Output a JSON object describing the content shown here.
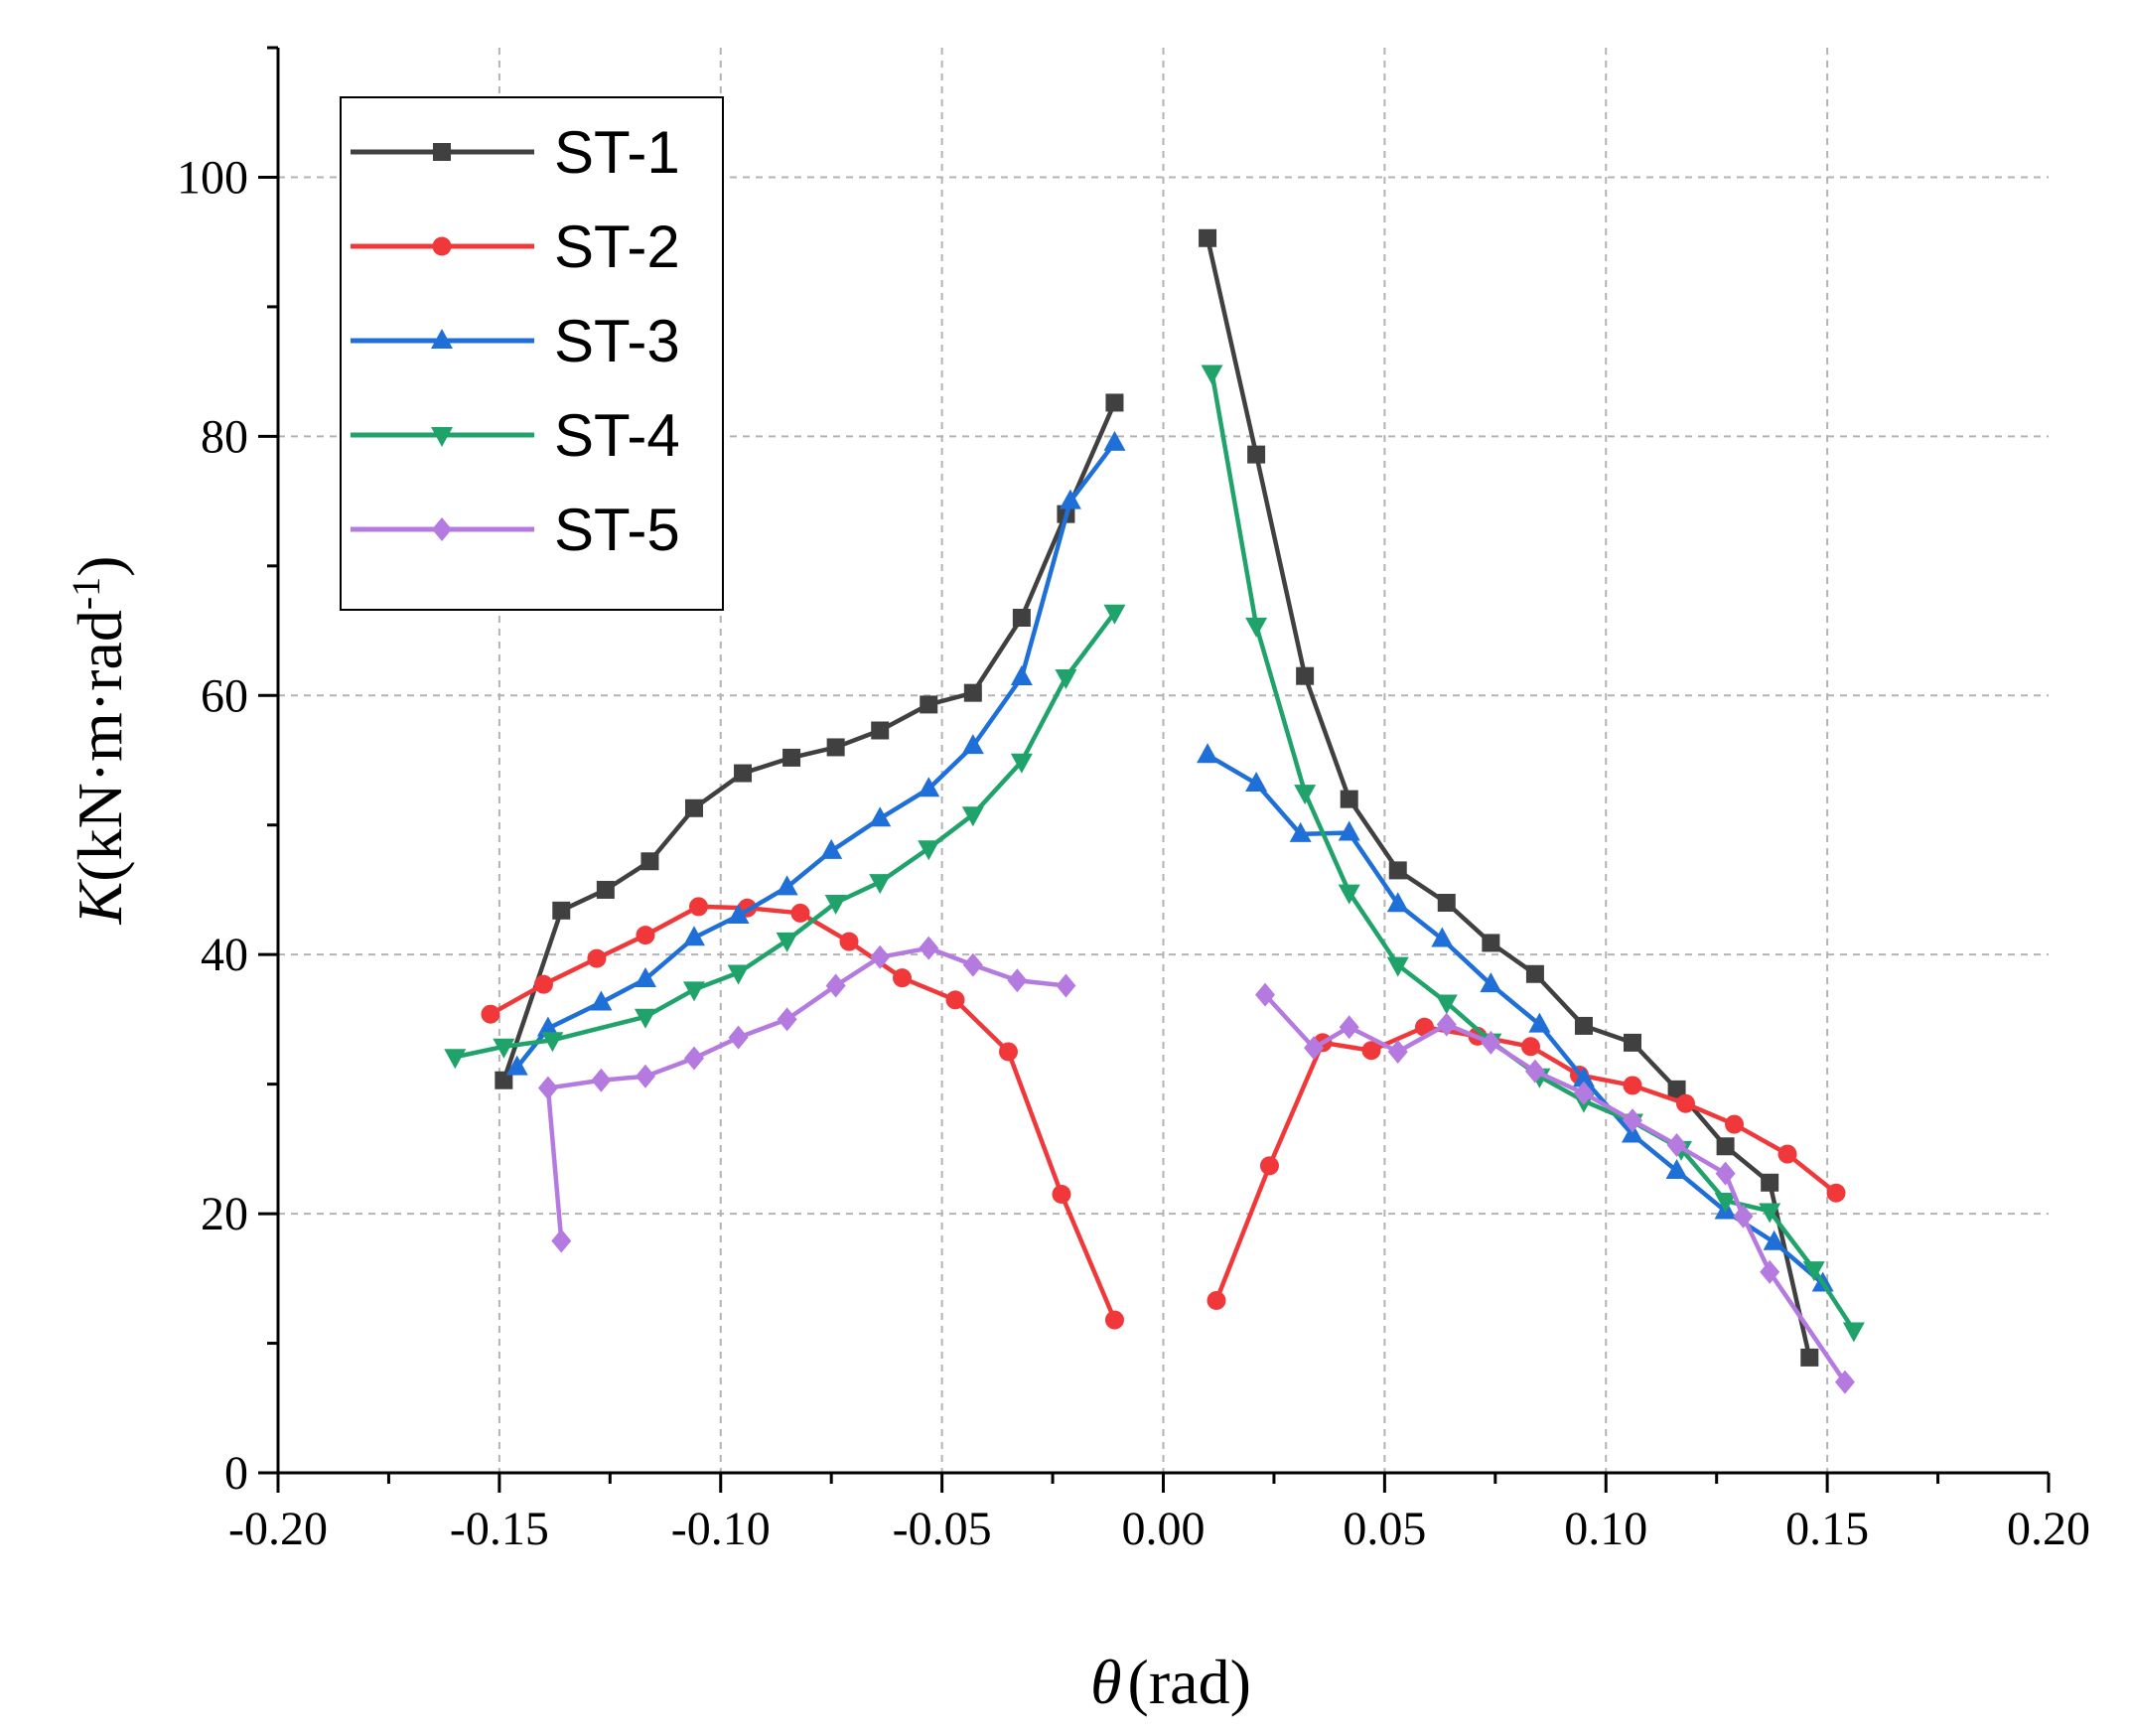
{
  "chart_data": {
    "type": "line",
    "title": "",
    "xlabel_symbol": "θ",
    "xlabel_unit": "(rad)",
    "ylabel_symbol": "K",
    "ylabel_unit": "(kN·m·rad",
    "ylabel_sup": "-1",
    "ylabel_close": ")",
    "xlim": [
      -0.2,
      0.2
    ],
    "ylim": [
      0,
      110
    ],
    "xticks": [
      -0.2,
      -0.15,
      -0.1,
      -0.05,
      0.0,
      0.05,
      0.1,
      0.15,
      0.2
    ],
    "xtick_labels": [
      "-0.20",
      "-0.15",
      "-0.10",
      "-0.05",
      "0.00",
      "0.05",
      "0.10",
      "0.15",
      "0.20"
    ],
    "yticks": [
      0,
      20,
      40,
      60,
      80,
      100
    ],
    "ytick_labels": [
      "0",
      "20",
      "40",
      "60",
      "80",
      "100"
    ],
    "grid": true,
    "legend_position": "top-left",
    "series": [
      {
        "name": "ST-1",
        "color": "#404040",
        "marker": "square",
        "segments": [
          [
            [
              -0.149,
              30.3
            ],
            [
              -0.136,
              43.4
            ],
            [
              -0.126,
              45.0
            ],
            [
              -0.116,
              47.2
            ],
            [
              -0.106,
              51.3
            ],
            [
              -0.095,
              54.0
            ],
            [
              -0.084,
              55.2
            ],
            [
              -0.074,
              56.0
            ],
            [
              -0.064,
              57.3
            ],
            [
              -0.053,
              59.3
            ],
            [
              -0.043,
              60.2
            ],
            [
              -0.032,
              66.0
            ],
            [
              -0.022,
              74.0
            ],
            [
              -0.011,
              82.6
            ]
          ],
          [
            [
              0.01,
              95.3
            ],
            [
              0.021,
              78.6
            ],
            [
              0.032,
              61.5
            ],
            [
              0.042,
              52.0
            ],
            [
              0.053,
              46.5
            ],
            [
              0.064,
              44.0
            ],
            [
              0.074,
              40.9
            ],
            [
              0.084,
              38.5
            ],
            [
              0.095,
              34.5
            ],
            [
              0.106,
              33.2
            ],
            [
              0.116,
              29.6
            ],
            [
              0.127,
              25.2
            ],
            [
              0.137,
              22.4
            ],
            [
              0.146,
              8.9
            ]
          ]
        ]
      },
      {
        "name": "ST-2",
        "color": "#f0383a",
        "marker": "circle",
        "segments": [
          [
            [
              -0.152,
              35.4
            ],
            [
              -0.14,
              37.7
            ],
            [
              -0.128,
              39.7
            ],
            [
              -0.117,
              41.5
            ],
            [
              -0.105,
              43.7
            ],
            [
              -0.094,
              43.6
            ],
            [
              -0.082,
              43.2
            ],
            [
              -0.071,
              41.0
            ],
            [
              -0.059,
              38.2
            ],
            [
              -0.047,
              36.5
            ],
            [
              -0.035,
              32.5
            ],
            [
              -0.023,
              21.5
            ],
            [
              -0.011,
              11.8
            ]
          ],
          [
            [
              0.012,
              13.3
            ],
            [
              0.024,
              23.7
            ],
            [
              0.036,
              33.2
            ],
            [
              0.047,
              32.6
            ],
            [
              0.059,
              34.4
            ],
            [
              0.071,
              33.7
            ],
            [
              0.083,
              32.9
            ],
            [
              0.094,
              30.7
            ],
            [
              0.106,
              29.9
            ],
            [
              0.118,
              28.5
            ],
            [
              0.129,
              26.9
            ],
            [
              0.141,
              24.6
            ],
            [
              0.152,
              21.6
            ]
          ]
        ]
      },
      {
        "name": "ST-3",
        "color": "#1f6fd9",
        "marker": "triangle-up",
        "segments": [
          [
            [
              -0.146,
              31.3
            ],
            [
              -0.139,
              34.3
            ],
            [
              -0.127,
              36.3
            ],
            [
              -0.117,
              38.1
            ],
            [
              -0.106,
              41.3
            ],
            [
              -0.096,
              43.0
            ],
            [
              -0.085,
              45.2
            ],
            [
              -0.075,
              48.0
            ],
            [
              -0.064,
              50.5
            ],
            [
              -0.053,
              52.8
            ],
            [
              -0.043,
              56.1
            ],
            [
              -0.032,
              61.4
            ],
            [
              -0.021,
              75.0
            ],
            [
              -0.011,
              79.5
            ]
          ],
          [
            [
              0.01,
              55.4
            ],
            [
              0.021,
              53.2
            ],
            [
              0.031,
              49.3
            ],
            [
              0.042,
              49.4
            ],
            [
              0.053,
              43.9
            ],
            [
              0.063,
              41.2
            ],
            [
              0.074,
              37.7
            ],
            [
              0.085,
              34.6
            ],
            [
              0.095,
              30.4
            ],
            [
              0.106,
              26.1
            ],
            [
              0.116,
              23.3
            ],
            [
              0.127,
              20.2
            ],
            [
              0.138,
              17.8
            ],
            [
              0.149,
              14.6
            ]
          ]
        ]
      },
      {
        "name": "ST-4",
        "color": "#1fa36b",
        "marker": "triangle-down",
        "segments": [
          [
            [
              -0.16,
              32.1
            ],
            [
              -0.149,
              32.9
            ],
            [
              -0.138,
              33.4
            ],
            [
              -0.117,
              35.2
            ],
            [
              -0.106,
              37.3
            ],
            [
              -0.096,
              38.6
            ],
            [
              -0.085,
              41.1
            ],
            [
              -0.074,
              44.0
            ],
            [
              -0.064,
              45.6
            ],
            [
              -0.053,
              48.2
            ],
            [
              -0.043,
              50.8
            ],
            [
              -0.032,
              54.9
            ],
            [
              -0.022,
              61.4
            ],
            [
              -0.011,
              66.4
            ]
          ],
          [
            [
              0.011,
              84.9
            ],
            [
              0.021,
              65.4
            ],
            [
              0.032,
              52.5
            ],
            [
              0.042,
              44.8
            ],
            [
              0.053,
              39.2
            ],
            [
              0.064,
              36.3
            ],
            [
              0.074,
              33.3
            ],
            [
              0.085,
              30.6
            ],
            [
              0.095,
              28.7
            ],
            [
              0.106,
              27.1
            ],
            [
              0.117,
              25.0
            ],
            [
              0.127,
              21.0
            ],
            [
              0.137,
              20.2
            ],
            [
              0.147,
              15.7
            ],
            [
              0.156,
              11.0
            ]
          ]
        ]
      },
      {
        "name": "ST-5",
        "color": "#b57ae0",
        "marker": "diamond",
        "segments": [
          [
            [
              -0.136,
              17.9
            ],
            [
              -0.139,
              29.7
            ],
            [
              -0.127,
              30.3
            ],
            [
              -0.117,
              30.6
            ],
            [
              -0.106,
              32.0
            ],
            [
              -0.096,
              33.6
            ],
            [
              -0.085,
              35.0
            ],
            [
              -0.074,
              37.6
            ],
            [
              -0.064,
              39.8
            ],
            [
              -0.053,
              40.5
            ],
            [
              -0.043,
              39.2
            ],
            [
              -0.033,
              38.0
            ],
            [
              -0.022,
              37.6
            ]
          ],
          [
            [
              0.023,
              36.9
            ],
            [
              0.034,
              32.8
            ],
            [
              0.042,
              34.4
            ],
            [
              0.053,
              32.5
            ],
            [
              0.064,
              34.6
            ],
            [
              0.074,
              33.2
            ],
            [
              0.084,
              31.0
            ],
            [
              0.095,
              29.3
            ],
            [
              0.106,
              27.2
            ],
            [
              0.116,
              25.3
            ],
            [
              0.127,
              23.1
            ],
            [
              0.131,
              19.8
            ],
            [
              0.137,
              15.5
            ],
            [
              0.154,
              7.0
            ]
          ]
        ]
      }
    ]
  }
}
